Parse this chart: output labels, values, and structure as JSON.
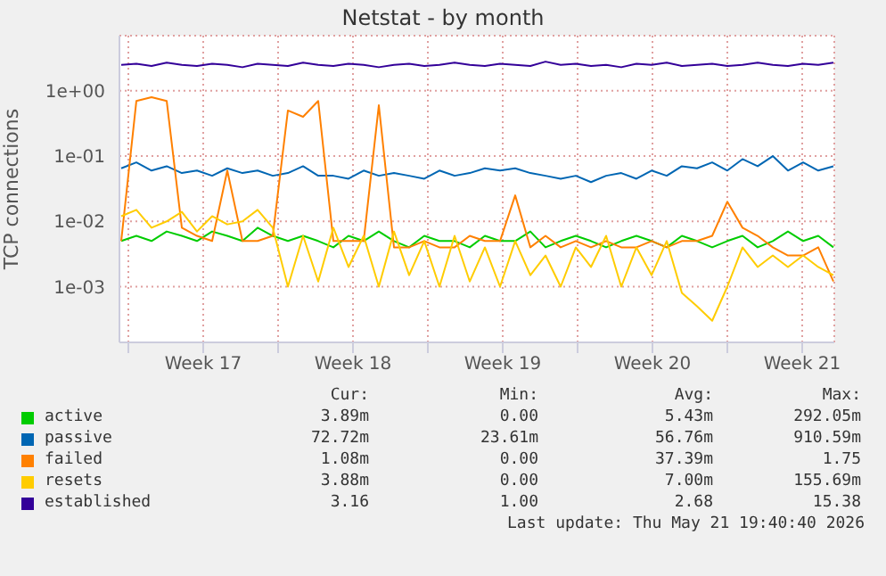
{
  "chart_data": {
    "type": "line",
    "title": "Netstat - by month",
    "ylabel": "TCP connections",
    "log": "y",
    "grid": true,
    "legend": "bottom",
    "marker": "none",
    "line_style": "solid",
    "x": [
      "2026-04-19T16:00",
      "2026-04-20T09:00",
      "2026-04-21T02:00",
      "2026-04-21T19:00",
      "2026-04-22T12:00",
      "2026-04-23T05:00",
      "2026-04-23T22:00",
      "2026-04-24T15:00",
      "2026-04-25T08:00",
      "2026-04-26T01:00",
      "2026-04-26T18:00",
      "2026-04-27T11:00",
      "2026-04-28T04:00",
      "2026-04-28T21:00",
      "2026-04-29T14:00",
      "2026-04-30T07:00",
      "2026-05-01T00:00",
      "2026-05-01T17:00",
      "2026-05-02T10:00",
      "2026-05-03T03:00",
      "2026-05-03T20:00",
      "2026-05-04T13:00",
      "2026-05-05T06:00",
      "2026-05-05T23:00",
      "2026-05-06T16:00",
      "2026-05-07T09:00",
      "2026-05-08T02:00",
      "2026-05-08T19:00",
      "2026-05-09T12:00",
      "2026-05-10T05:00",
      "2026-05-10T22:00",
      "2026-05-11T15:00",
      "2026-05-12T08:00",
      "2026-05-13T01:00",
      "2026-05-13T18:00",
      "2026-05-14T11:00",
      "2026-05-15T04:00",
      "2026-05-15T21:00",
      "2026-05-16T14:00",
      "2026-05-17T07:00",
      "2026-05-18T00:00",
      "2026-05-18T17:00",
      "2026-05-19T10:00",
      "2026-05-20T03:00",
      "2026-05-20T20:00",
      "2026-05-21T13:00",
      "2026-05-22T06:00",
      "2026-05-22T23:00"
    ],
    "xlim": [
      "2026-04-19T14:00",
      "2026-05-23T00:00"
    ],
    "xticks": [
      {
        "value": "2026-04-20",
        "label": null
      },
      {
        "value": "2026-04-23T12:00",
        "label": "Week 17"
      },
      {
        "value": "2026-04-27",
        "label": null
      },
      {
        "value": "2026-04-30T12:00",
        "label": "Week 18"
      },
      {
        "value": "2026-05-04",
        "label": null
      },
      {
        "value": "2026-05-07T12:00",
        "label": "Week 19"
      },
      {
        "value": "2026-05-11",
        "label": null
      },
      {
        "value": "2026-05-14T12:00",
        "label": "Week 20"
      },
      {
        "value": "2026-05-18",
        "label": null
      },
      {
        "value": "2026-05-21T12:00",
        "label": "Week 21"
      }
    ],
    "ylim": [
      0.00014,
      7
    ],
    "yticks": [
      {
        "value": 0.001,
        "label": "1e-03"
      },
      {
        "value": 0.01,
        "label": "1e-02"
      },
      {
        "value": 0.1,
        "label": "1e-01"
      },
      {
        "value": 1,
        "label": "1e+00"
      }
    ],
    "series": [
      {
        "name": "active",
        "color": "#00cc00",
        "values": [
          0.005,
          0.006,
          0.005,
          0.007,
          0.006,
          0.005,
          0.007,
          0.006,
          0.005,
          0.008,
          0.006,
          0.005,
          0.006,
          0.005,
          0.004,
          0.006,
          0.005,
          0.007,
          0.005,
          0.004,
          0.006,
          0.005,
          0.005,
          0.004,
          0.006,
          0.005,
          0.005,
          0.007,
          0.004,
          0.005,
          0.006,
          0.005,
          0.004,
          0.005,
          0.006,
          0.005,
          0.004,
          0.006,
          0.005,
          0.004,
          0.005,
          0.006,
          0.004,
          0.005,
          0.007,
          0.005,
          0.006,
          0.004
        ]
      },
      {
        "name": "passive",
        "color": "#0066b3",
        "values": [
          0.065,
          0.08,
          0.06,
          0.07,
          0.055,
          0.06,
          0.05,
          0.065,
          0.055,
          0.06,
          0.05,
          0.055,
          0.07,
          0.05,
          0.05,
          0.045,
          0.06,
          0.05,
          0.055,
          0.05,
          0.045,
          0.06,
          0.05,
          0.055,
          0.065,
          0.06,
          0.065,
          0.055,
          0.05,
          0.045,
          0.05,
          0.04,
          0.05,
          0.055,
          0.045,
          0.06,
          0.05,
          0.07,
          0.065,
          0.08,
          0.06,
          0.09,
          0.07,
          0.1,
          0.06,
          0.08,
          0.06,
          0.07
        ]
      },
      {
        "name": "failed",
        "color": "#ff8000",
        "values": [
          0.005,
          0.7,
          0.8,
          0.7,
          0.008,
          0.006,
          0.005,
          0.06,
          0.005,
          0.005,
          0.006,
          0.5,
          0.4,
          0.7,
          0.005,
          0.005,
          0.005,
          0.6,
          0.004,
          0.004,
          0.005,
          0.004,
          0.004,
          0.006,
          0.005,
          0.005,
          0.025,
          0.004,
          0.006,
          0.004,
          0.005,
          0.004,
          0.005,
          0.004,
          0.004,
          0.005,
          0.004,
          0.005,
          0.005,
          0.006,
          0.02,
          0.008,
          0.006,
          0.004,
          0.003,
          0.003,
          0.004,
          0.0012
        ]
      },
      {
        "name": "resets",
        "color": "#ffcc00",
        "values": [
          0.012,
          0.015,
          0.008,
          0.01,
          0.014,
          0.007,
          0.012,
          0.009,
          0.01,
          0.015,
          0.008,
          0.001,
          0.006,
          0.0012,
          0.008,
          0.002,
          0.006,
          0.001,
          0.007,
          0.0015,
          0.005,
          0.001,
          0.006,
          0.0012,
          0.004,
          0.001,
          0.005,
          0.0015,
          0.003,
          0.001,
          0.004,
          0.002,
          0.006,
          0.001,
          0.004,
          0.0015,
          0.005,
          0.0008,
          0.0005,
          0.0003,
          0.001,
          0.004,
          0.002,
          0.003,
          0.002,
          0.003,
          0.002,
          0.0015
        ]
      },
      {
        "name": "established",
        "color": "#330099",
        "values": [
          2.5,
          2.6,
          2.4,
          2.7,
          2.5,
          2.4,
          2.6,
          2.5,
          2.3,
          2.6,
          2.5,
          2.4,
          2.7,
          2.5,
          2.4,
          2.6,
          2.5,
          2.3,
          2.5,
          2.6,
          2.4,
          2.5,
          2.7,
          2.5,
          2.4,
          2.6,
          2.5,
          2.4,
          2.8,
          2.5,
          2.6,
          2.4,
          2.5,
          2.3,
          2.6,
          2.5,
          2.7,
          2.4,
          2.5,
          2.6,
          2.4,
          2.5,
          2.7,
          2.5,
          2.4,
          2.6,
          2.5,
          2.7
        ]
      }
    ],
    "annotations": [
      "Cur:",
      "Min:",
      "Avg:",
      "Max:",
      "3.89m",
      "0.00",
      "5.43m",
      "292.05m",
      "72.72m",
      "23.61m",
      "56.76m",
      "910.59m",
      "1.08m",
      "0.00",
      "37.39m",
      "1.75",
      "3.88m",
      "0.00",
      "7.00m",
      "155.69m",
      "3.16",
      "1.00",
      "2.68",
      "15.38",
      "Last update: Thu May 21 19:40:40 2026"
    ]
  }
}
